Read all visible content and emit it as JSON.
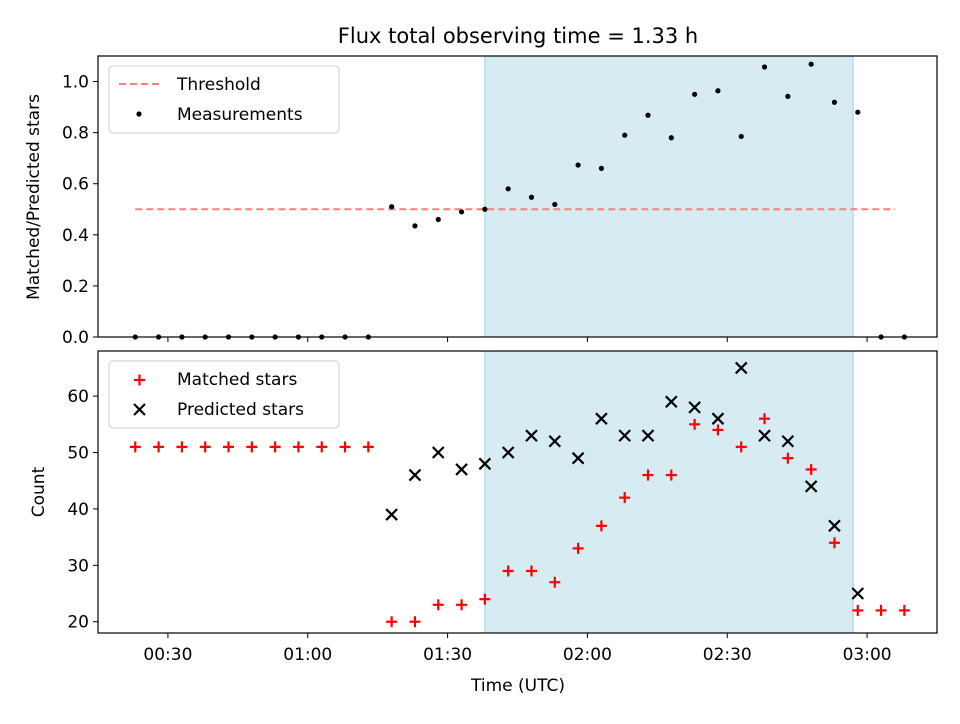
{
  "chart_data": [
    {
      "type": "scatter",
      "title": "Flux total observing time = 1.33 h",
      "ylabel": "Matched/Predicted stars",
      "ylim": [
        0,
        1.1
      ],
      "yticks": [
        0.0,
        0.2,
        0.4,
        0.6,
        0.8,
        1.0
      ],
      "yticklabels": [
        "0.0",
        "0.2",
        "0.4",
        "0.6",
        "0.8",
        "1.0"
      ],
      "xlim": [
        "00:15",
        "03:15"
      ],
      "shaded_span": [
        "01:38",
        "02:57"
      ],
      "legend": "top-left",
      "threshold": {
        "name": "Threshold",
        "value": 0.5,
        "x_range": [
          "00:23",
          "03:06"
        ],
        "color": "#ff7f7f"
      },
      "series": [
        {
          "name": "Measurements",
          "color": "#000000",
          "x": [
            "00:23",
            "00:28",
            "00:33",
            "00:38",
            "00:43",
            "00:48",
            "00:53",
            "00:58",
            "01:03",
            "01:08",
            "01:13",
            "01:18",
            "01:23",
            "01:28",
            "01:33",
            "01:38",
            "01:43",
            "01:48",
            "01:53",
            "01:58",
            "02:03",
            "02:08",
            "02:13",
            "02:18",
            "02:23",
            "02:28",
            "02:33",
            "02:38",
            "02:43",
            "02:48",
            "02:53",
            "02:58",
            "03:03",
            "03:08"
          ],
          "y": [
            0,
            0,
            0,
            0,
            0,
            0,
            0,
            0,
            0,
            0,
            0,
            0.51,
            0.435,
            0.46,
            0.49,
            0.5,
            0.58,
            0.547,
            0.519,
            0.673,
            0.66,
            0.79,
            0.868,
            0.78,
            0.95,
            0.964,
            0.785,
            1.057,
            0.942,
            1.068,
            0.919,
            0.88,
            0,
            0
          ]
        }
      ]
    },
    {
      "type": "scatter",
      "xlabel": "Time (UTC)",
      "ylabel": "Count",
      "ylim": [
        18,
        68
      ],
      "yticks": [
        20,
        30,
        40,
        50,
        60
      ],
      "yticklabels": [
        "20",
        "30",
        "40",
        "50",
        "60"
      ],
      "xlim": [
        "00:15",
        "03:15"
      ],
      "xticks": [
        "00:30",
        "01:00",
        "01:30",
        "02:00",
        "02:30",
        "03:00"
      ],
      "xticklabels": [
        "00:30",
        "01:00",
        "01:30",
        "02:00",
        "02:30",
        "03:00"
      ],
      "shaded_span": [
        "01:38",
        "02:57"
      ],
      "legend": "top-left",
      "series": [
        {
          "name": "Matched stars",
          "color": "#ff0000",
          "marker": "+",
          "x": [
            "00:23",
            "00:28",
            "00:33",
            "00:38",
            "00:43",
            "00:48",
            "00:53",
            "00:58",
            "01:03",
            "01:08",
            "01:13",
            "01:18",
            "01:23",
            "01:28",
            "01:33",
            "01:38",
            "01:43",
            "01:48",
            "01:53",
            "01:58",
            "02:03",
            "02:08",
            "02:13",
            "02:18",
            "02:23",
            "02:28",
            "02:33",
            "02:38",
            "02:43",
            "02:48",
            "02:53",
            "02:58",
            "03:03",
            "03:08"
          ],
          "y": [
            51,
            51,
            51,
            51,
            51,
            51,
            51,
            51,
            51,
            51,
            51,
            20,
            20,
            23,
            23,
            24,
            29,
            29,
            27,
            33,
            37,
            42,
            46,
            46,
            55,
            54,
            51,
            56,
            49,
            47,
            34,
            22,
            22,
            22
          ]
        },
        {
          "name": "Predicted stars",
          "color": "#000000",
          "marker": "x",
          "x": [
            "01:18",
            "01:23",
            "01:28",
            "01:33",
            "01:38",
            "01:43",
            "01:48",
            "01:53",
            "01:58",
            "02:03",
            "02:08",
            "02:13",
            "02:18",
            "02:23",
            "02:28",
            "02:33",
            "02:38",
            "02:43",
            "02:48",
            "02:53",
            "02:58"
          ],
          "y": [
            39,
            46,
            50,
            47,
            48,
            50,
            53,
            52,
            49,
            56,
            53,
            53,
            59,
            58,
            56,
            65,
            53,
            52,
            44,
            37,
            25
          ]
        }
      ]
    }
  ]
}
